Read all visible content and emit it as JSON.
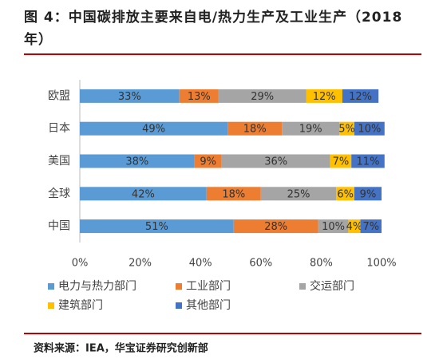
{
  "chart_data": {
    "type": "stacked-barh",
    "title": "图 4：中国碳排放主要来自电/热力生产及工业生产（2018 年）",
    "categories": [
      "欧盟",
      "日本",
      "美国",
      "全球",
      "中国"
    ],
    "series": [
      {
        "name": "电力与热力部门",
        "color": "#5b9bd5",
        "values": [
          33,
          49,
          38,
          42,
          51
        ],
        "value_labels": [
          "33%",
          "49%",
          "38%",
          "42%",
          "51%"
        ]
      },
      {
        "name": "工业部门",
        "color": "#ed7d31",
        "values": [
          13,
          18,
          9,
          18,
          28
        ],
        "value_labels": [
          "13%",
          "18%",
          "9%",
          "18%",
          "28%"
        ]
      },
      {
        "name": "交运部门",
        "color": "#a5a5a5",
        "values": [
          29,
          19,
          36,
          25,
          10
        ],
        "value_labels": [
          "29%",
          "19%",
          "36%",
          "25%",
          "10%"
        ]
      },
      {
        "name": "建筑部门",
        "color": "#ffc000",
        "values": [
          12,
          5,
          7,
          6,
          4
        ],
        "value_labels": [
          "12%",
          "5%",
          "7%",
          "6%",
          "4%"
        ]
      },
      {
        "name": "其他部门",
        "color": "#4472c4",
        "values": [
          12,
          10,
          11,
          9,
          7
        ],
        "value_labels": [
          "12%",
          "10%",
          "11%",
          "9%",
          "7%"
        ]
      }
    ],
    "xlim": [
      0,
      100
    ],
    "xticks": [
      {
        "value": 0,
        "label": "0%"
      },
      {
        "value": 20,
        "label": "20%"
      },
      {
        "value": 40,
        "label": "40%"
      },
      {
        "value": 60,
        "label": "60%"
      },
      {
        "value": 80,
        "label": "80%"
      },
      {
        "value": 100,
        "label": "100%"
      }
    ],
    "grid": false,
    "source": "资料来源：IEA，华宝证券研究创新部"
  }
}
